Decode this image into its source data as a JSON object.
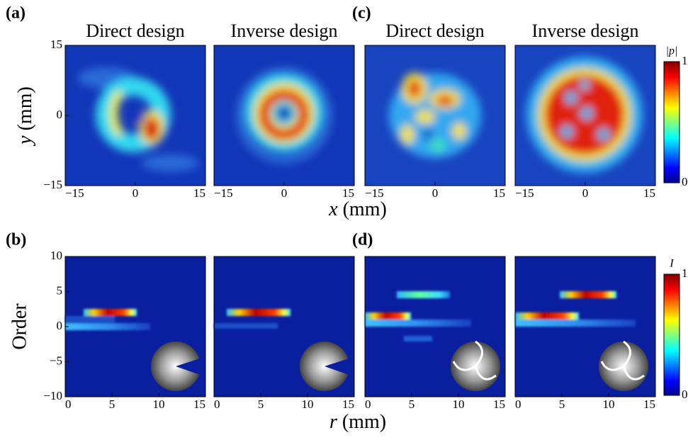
{
  "figure": {
    "panel_labels": [
      "(a)",
      "(b)",
      "(c)",
      "(d)"
    ],
    "top_xlabel": {
      "symbol": "x",
      "unit": "(mm)"
    },
    "top_ylabel": {
      "symbol": "y",
      "unit": "(mm)"
    },
    "bottom_xlabel": {
      "symbol": "r",
      "unit": "(mm)"
    },
    "bottom_ylabel": "Order",
    "colorbars": [
      {
        "label": "|p|",
        "lim": [
          0,
          1
        ],
        "ticks": [
          0,
          1
        ]
      },
      {
        "label": "I",
        "lim": [
          0,
          1
        ],
        "ticks": [
          0,
          1
        ]
      }
    ]
  },
  "chart_data": [
    {
      "type": "heatmap",
      "title": "Direct design",
      "xlim": [
        -15,
        15
      ],
      "xticks": [
        {
          "value": -15,
          "label": "−15"
        },
        0,
        15
      ],
      "ylim": [
        -15,
        15
      ],
      "yticks": [
        {
          "value": -15,
          "label": "−15"
        },
        0,
        15
      ]
    },
    {
      "type": "heatmap",
      "title": "Inverse design",
      "xlim": [
        -15,
        15
      ],
      "xticks": [
        {
          "value": -15,
          "label": "−15"
        },
        0,
        15
      ]
    },
    {
      "type": "heatmap",
      "title": "Direct design",
      "xlim": [
        -15,
        15
      ],
      "xticks": [
        {
          "value": -15,
          "label": "−15"
        },
        0,
        15
      ]
    },
    {
      "type": "heatmap",
      "title": "Inverse design",
      "xlim": [
        -15,
        15
      ],
      "xticks": [
        {
          "value": -15,
          "label": "−15"
        },
        0,
        15
      ]
    },
    {
      "type": "heatmap",
      "xlim": [
        0,
        15
      ],
      "xticks": [
        0,
        5,
        10,
        15
      ],
      "ylim": [
        -10,
        10
      ],
      "yticks": [
        {
          "value": -10,
          "label": "−10"
        },
        {
          "value": -5,
          "label": "−5"
        },
        0,
        5,
        10
      ]
    },
    {
      "type": "heatmap",
      "xlim": [
        0,
        15
      ],
      "xticks": [
        0,
        5,
        10,
        15
      ]
    },
    {
      "type": "heatmap",
      "xlim": [
        0,
        15
      ],
      "xticks": [
        0,
        5,
        10,
        15
      ]
    },
    {
      "type": "heatmap",
      "xlim": [
        0,
        15
      ],
      "xticks": [
        0,
        5,
        10,
        15
      ]
    }
  ]
}
